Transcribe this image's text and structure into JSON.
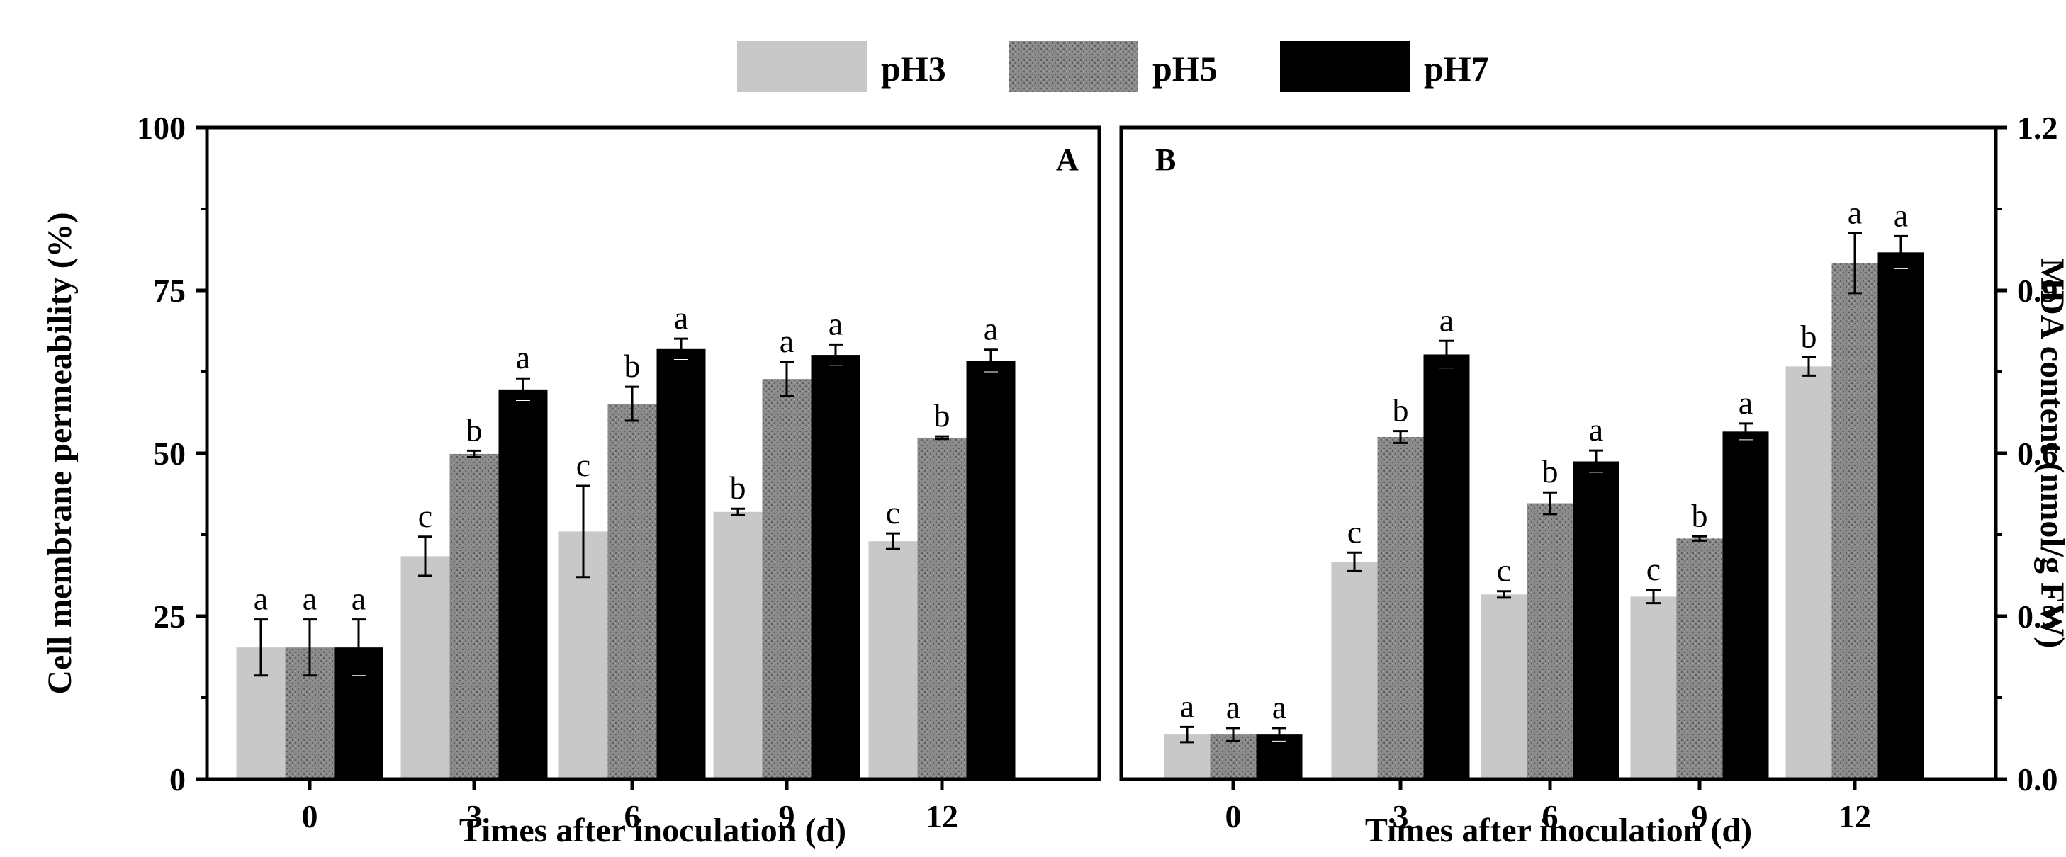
{
  "legend": {
    "items": [
      {
        "label": "pH3",
        "color": "#c8c8c8",
        "pattern": "solid-light"
      },
      {
        "label": "pH5",
        "color": "#7f7f7f",
        "pattern": "stipple-gray"
      },
      {
        "label": "pH7",
        "color": "#000000",
        "pattern": "solid-black"
      }
    ]
  },
  "chart_data": [
    {
      "type": "bar",
      "panel_label": "A",
      "xlabel": "Times after inoculation (d)",
      "ylabel": "Cell membrane permeability (%)",
      "y_axis_side": "left",
      "ylim": [
        0,
        100
      ],
      "yticks": [
        0,
        25,
        50,
        75,
        100
      ],
      "ytick_labels": [
        "0",
        "25",
        "50",
        "75",
        "100"
      ],
      "categories": [
        "0",
        "3",
        "6",
        "9",
        "12"
      ],
      "series": [
        {
          "name": "pH3",
          "values": [
            20.2,
            34.2,
            38.0,
            41.0,
            36.5
          ],
          "errors": [
            4.3,
            3.0,
            7.0,
            0.5,
            1.2
          ],
          "letters": [
            "a",
            "c",
            "c",
            "b",
            "c"
          ]
        },
        {
          "name": "pH5",
          "values": [
            20.2,
            49.9,
            57.6,
            61.4,
            52.4
          ],
          "errors": [
            4.3,
            0.5,
            2.6,
            2.6,
            0.2
          ],
          "letters": [
            "a",
            "b",
            "b",
            "a",
            "b"
          ]
        },
        {
          "name": "pH7",
          "values": [
            20.2,
            59.8,
            66.0,
            65.1,
            64.2
          ],
          "errors": [
            4.3,
            1.7,
            1.6,
            1.6,
            1.7
          ],
          "letters": [
            "a",
            "a",
            "a",
            "a",
            "a"
          ]
        }
      ]
    },
    {
      "type": "bar",
      "panel_label": "B",
      "xlabel": "Times after inoculation (d)",
      "ylabel": "MDA content (nmol/g FW)",
      "y_axis_side": "right",
      "ylim": [
        0,
        1.2
      ],
      "yticks": [
        0,
        0.3,
        0.6,
        0.9,
        1.2
      ],
      "ytick_labels": [
        "0.0",
        "0.3",
        "0.6",
        "0.9",
        "1.2"
      ],
      "categories": [
        "0",
        "3",
        "6",
        "9",
        "12"
      ],
      "series": [
        {
          "name": "pH3",
          "values": [
            0.082,
            0.4,
            0.34,
            0.336,
            0.76
          ],
          "errors": [
            0.014,
            0.017,
            0.006,
            0.012,
            0.017
          ],
          "letters": [
            "a",
            "c",
            "c",
            "c",
            "b"
          ]
        },
        {
          "name": "pH5",
          "values": [
            0.082,
            0.63,
            0.508,
            0.443,
            0.95
          ],
          "errors": [
            0.012,
            0.011,
            0.02,
            0.004,
            0.055
          ],
          "letters": [
            "a",
            "b",
            "b",
            "b",
            "a"
          ]
        },
        {
          "name": "pH7",
          "values": [
            0.082,
            0.782,
            0.585,
            0.64,
            0.97
          ],
          "errors": [
            0.012,
            0.025,
            0.02,
            0.015,
            0.03
          ],
          "letters": [
            "a",
            "a",
            "a",
            "a",
            "a"
          ]
        }
      ]
    }
  ]
}
